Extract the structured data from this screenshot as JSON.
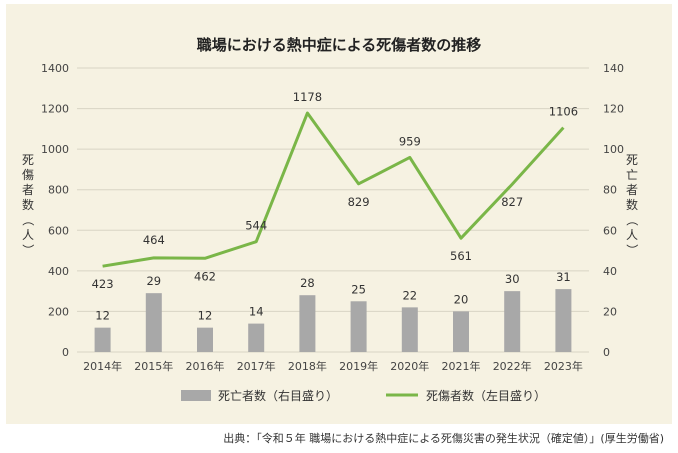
{
  "chart_data": {
    "type": "bar+line",
    "title": "職場における熱中症による死傷者数の推移",
    "categories": [
      "2014年",
      "2015年",
      "2016年",
      "2017年",
      "2018年",
      "2019年",
      "2020年",
      "2021年",
      "2022年",
      "2023年"
    ],
    "series": [
      {
        "name": "死亡者数（右目盛り）",
        "type": "bar",
        "axis": "right",
        "color": "#a8a8a8",
        "values": [
          12,
          29,
          12,
          14,
          28,
          25,
          22,
          20,
          30,
          31
        ]
      },
      {
        "name": "死傷者数（左目盛り）",
        "type": "line",
        "axis": "left",
        "color": "#7ab648",
        "values": [
          423,
          464,
          462,
          544,
          1178,
          829,
          959,
          561,
          827,
          1106
        ]
      }
    ],
    "y_left": {
      "label": "死傷者数（人）",
      "ylim": [
        0,
        1400
      ],
      "ticks": [
        0,
        200,
        400,
        600,
        800,
        1000,
        1200,
        1400
      ]
    },
    "y_right": {
      "label": "死亡者数（人）",
      "ylim": [
        0,
        140
      ],
      "ticks": [
        0,
        20,
        40,
        60,
        80,
        100,
        120,
        140
      ]
    },
    "legend_placement": "bottom",
    "grid": true
  },
  "source": "出典：「令和５年 職場における熱中症による死傷災害の発生状況（確定値）」(厚生労働省)"
}
